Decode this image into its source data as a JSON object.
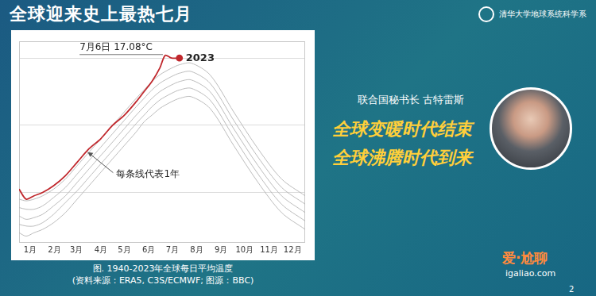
{
  "slide": {
    "title": "全球迎来史上最热七月",
    "logo": "清华大学地球系统科学系",
    "speaker": "联合国秘书长 古特雷斯",
    "quote": [
      "全球变暖时代结束",
      "全球沸腾时代到来"
    ],
    "page": "2",
    "watermark": [
      "爱·尬聊",
      "igaliao.com"
    ]
  },
  "chart_data": {
    "type": "line",
    "caption": [
      "图. 1940-2023年全球每日平均温度",
      "(资料来源：ERA5, C3S/ECMWF; 图源：BBC)"
    ],
    "x": [
      1,
      10,
      20,
      31,
      45,
      60,
      75,
      90,
      105,
      120,
      135,
      150,
      160,
      170,
      180,
      187,
      195,
      205,
      220,
      244,
      274,
      305,
      335,
      365
    ],
    "series": [
      {
        "color": "#b4b4b4",
        "values": [
          11.8,
          11.7,
          11.8,
          11.9,
          12.1,
          12.4,
          12.8,
          13.2,
          13.6,
          14.0,
          14.4,
          14.8,
          15.1,
          15.3,
          15.5,
          15.6,
          15.7,
          15.8,
          15.85,
          15.5,
          14.4,
          13.3,
          12.4,
          11.9
        ]
      },
      {
        "color": "#b4b4b4",
        "values": [
          12.05,
          12.0,
          12.0,
          12.1,
          12.35,
          12.7,
          13.05,
          13.45,
          13.85,
          14.25,
          14.65,
          15.05,
          15.3,
          15.55,
          15.75,
          15.85,
          15.95,
          16.05,
          16.1,
          15.75,
          14.65,
          13.55,
          12.65,
          12.15
        ]
      },
      {
        "color": "#b4b4b4",
        "values": [
          12.3,
          12.2,
          12.25,
          12.35,
          12.6,
          12.9,
          13.3,
          13.7,
          14.1,
          14.5,
          14.9,
          15.3,
          15.55,
          15.8,
          16.0,
          16.1,
          16.2,
          16.3,
          16.35,
          16.0,
          14.9,
          13.8,
          12.9,
          12.4
        ]
      },
      {
        "color": "#b4b4b4",
        "values": [
          12.55,
          12.5,
          12.5,
          12.6,
          12.85,
          13.15,
          13.55,
          13.95,
          14.35,
          14.75,
          15.15,
          15.55,
          15.8,
          16.05,
          16.25,
          16.35,
          16.45,
          16.55,
          16.6,
          16.25,
          15.15,
          14.05,
          13.15,
          12.65
        ]
      },
      {
        "color": "#b4b4b4",
        "values": [
          12.8,
          12.75,
          12.8,
          12.9,
          13.1,
          13.4,
          13.8,
          14.2,
          14.6,
          15.0,
          15.4,
          15.8,
          16.05,
          16.3,
          16.5,
          16.6,
          16.7,
          16.8,
          16.85,
          16.5,
          15.4,
          14.3,
          13.4,
          12.9
        ]
      },
      {
        "name": "2023",
        "color": "#c0282d",
        "values": [
          13.1,
          12.8,
          12.9,
          13.0,
          13.2,
          13.5,
          13.9,
          14.3,
          14.6,
          15.0,
          15.3,
          15.7,
          16.0,
          16.3,
          16.7,
          17.08,
          17.0,
          17.0,
          null,
          null,
          null,
          null,
          null,
          null
        ]
      }
    ],
    "xlim": [
      1,
      365
    ],
    "xticks": [
      {
        "value": 15,
        "label": "1月"
      },
      {
        "value": 46,
        "label": "2月"
      },
      {
        "value": 74,
        "label": "3月"
      },
      {
        "value": 105,
        "label": "4月"
      },
      {
        "value": 135,
        "label": "5月"
      },
      {
        "value": 166,
        "label": "6月"
      },
      {
        "value": 196,
        "label": "7月"
      },
      {
        "value": 227,
        "label": "8月"
      },
      {
        "value": 258,
        "label": "9月"
      },
      {
        "value": 288,
        "label": "10月"
      },
      {
        "value": 319,
        "label": "11月"
      },
      {
        "value": 349,
        "label": "12月"
      }
    ],
    "ylim": [
      11.5,
      17.5
    ],
    "yticks": [
      13,
      15,
      17
    ],
    "grid": true,
    "tick_labels": "x",
    "annotations": [
      {
        "text": "7月6日 17.08°C",
        "x": 187,
        "y": 17.08
      },
      {
        "text": "每条线代表1年"
      }
    ]
  }
}
